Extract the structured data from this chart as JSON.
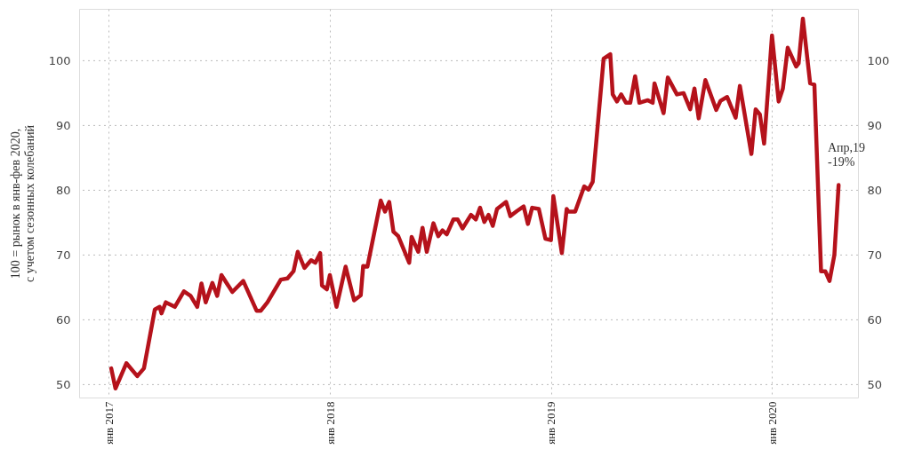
{
  "chart_data": {
    "type": "line",
    "ylabel": "100 = рынок в янв-фев 2020,\nс учетом сезонных колебаний",
    "x": [
      "2017-01-05",
      "2017-01-12",
      "2017-01-30",
      "2017-02-17",
      "2017-02-28",
      "2017-03-18",
      "2017-03-26",
      "2017-03-29",
      "2017-04-05",
      "2017-04-20",
      "2017-05-05",
      "2017-05-16",
      "2017-05-27",
      "2017-06-03",
      "2017-06-10",
      "2017-06-21",
      "2017-06-29",
      "2017-07-06",
      "2017-07-24",
      "2017-08-11",
      "2017-09-02",
      "2017-09-09",
      "2017-09-20",
      "2017-10-12",
      "2017-10-23",
      "2017-11-02",
      "2017-11-09",
      "2017-11-20",
      "2017-12-01",
      "2017-12-08",
      "2017-12-16",
      "2017-12-19",
      "2017-12-27",
      "2018-01-01",
      "2018-01-12",
      "2018-01-27",
      "2018-02-10",
      "2018-02-21",
      "2018-02-25",
      "2018-03-04",
      "2018-03-26",
      "2018-04-02",
      "2018-04-09",
      "2018-04-16",
      "2018-04-24",
      "2018-05-12",
      "2018-05-16",
      "2018-05-27",
      "2018-06-03",
      "2018-06-10",
      "2018-06-21",
      "2018-06-29",
      "2018-07-06",
      "2018-07-13",
      "2018-07-24",
      "2018-07-31",
      "2018-08-08",
      "2018-08-22",
      "2018-08-30",
      "2018-09-06",
      "2018-09-13",
      "2018-09-20",
      "2018-09-27",
      "2018-10-04",
      "2018-10-19",
      "2018-10-26",
      "2018-11-06",
      "2018-11-17",
      "2018-11-24",
      "2018-12-01",
      "2018-12-12",
      "2018-12-23",
      "2019-01-01",
      "2019-01-05",
      "2019-01-19",
      "2019-01-27",
      "2019-01-30",
      "2019-02-10",
      "2019-02-25",
      "2019-03-04",
      "2019-03-11",
      "2019-03-29",
      "2019-04-09",
      "2019-04-13",
      "2019-04-20",
      "2019-04-27",
      "2019-05-05",
      "2019-05-12",
      "2019-05-20",
      "2019-05-27",
      "2019-06-10",
      "2019-06-18",
      "2019-06-21",
      "2019-07-06",
      "2019-07-13",
      "2019-07-28",
      "2019-08-08",
      "2019-08-19",
      "2019-08-26",
      "2019-09-02",
      "2019-09-13",
      "2019-10-01",
      "2019-10-08",
      "2019-10-19",
      "2019-11-02",
      "2019-11-09",
      "2019-11-28",
      "2019-12-05",
      "2019-12-12",
      "2019-12-19",
      "2020-01-01",
      "2020-01-12",
      "2020-01-19",
      "2020-01-27",
      "2020-02-10",
      "2020-02-14",
      "2020-02-21",
      "2020-03-04",
      "2020-03-11",
      "2020-03-22",
      "2020-03-29",
      "2020-04-05",
      "2020-04-13",
      "2020-04-20"
    ],
    "series": [
      {
        "color": "#b5121b",
        "values": [
          52.5,
          49.4,
          53.3,
          51.3,
          52.5,
          61.6,
          62,
          61,
          62.7,
          62,
          64.4,
          63.7,
          62,
          65.6,
          62.7,
          65.7,
          63.7,
          66.9,
          64.3,
          66,
          61.4,
          61.4,
          62.7,
          66.2,
          66.4,
          67.5,
          70.5,
          68,
          69.2,
          68.8,
          70.3,
          65.3,
          64.7,
          66.9,
          62,
          68.2,
          63,
          63.8,
          68.3,
          68.2,
          78.4,
          76.7,
          78.2,
          73.6,
          72.9,
          68.8,
          72.8,
          70.5,
          74.2,
          70.5,
          74.9,
          72.9,
          73.8,
          73.2,
          75.5,
          75.5,
          74.1,
          76.2,
          75.5,
          77.3,
          75.1,
          76.2,
          74.5,
          77.1,
          78.2,
          76,
          76.8,
          77.5,
          74.8,
          77.3,
          77.1,
          72.5,
          72.3,
          79.1,
          70.3,
          77.1,
          76.7,
          76.7,
          80.6,
          80.1,
          81.3,
          100.3,
          101,
          94.8,
          93.7,
          94.8,
          93.5,
          93.5,
          97.6,
          93.5,
          93.9,
          93.5,
          96.5,
          91.9,
          97.4,
          94.8,
          95,
          92.5,
          95.7,
          91.1,
          97,
          92.4,
          93.8,
          94.4,
          91.2,
          96.1,
          85.6,
          92.5,
          91.7,
          87.2,
          103.9,
          93.7,
          95.7,
          102,
          99.1,
          99.6,
          106.5,
          96.5,
          96.3,
          67.5,
          67.5,
          66,
          70,
          80.8
        ]
      }
    ],
    "xlim": [
      "2016-11-13",
      "2020-05-22"
    ],
    "xticks": [
      {
        "value": "2017-01-01",
        "label": "янв 2017"
      },
      {
        "value": "2018-01-01",
        "label": "янв 2018"
      },
      {
        "value": "2019-01-01",
        "label": "янв 2019"
      },
      {
        "value": "2020-01-01",
        "label": "янв 2020"
      }
    ],
    "ylim": [
      48,
      108
    ],
    "yticks": [
      50,
      60,
      70,
      80,
      90,
      100
    ],
    "y2lim": [
      48,
      108
    ],
    "y2ticks": [
      50,
      60,
      70,
      80,
      90,
      100
    ],
    "grid": true,
    "line_style": "solid",
    "annotations": [
      "Апр,19\n-19%"
    ]
  }
}
